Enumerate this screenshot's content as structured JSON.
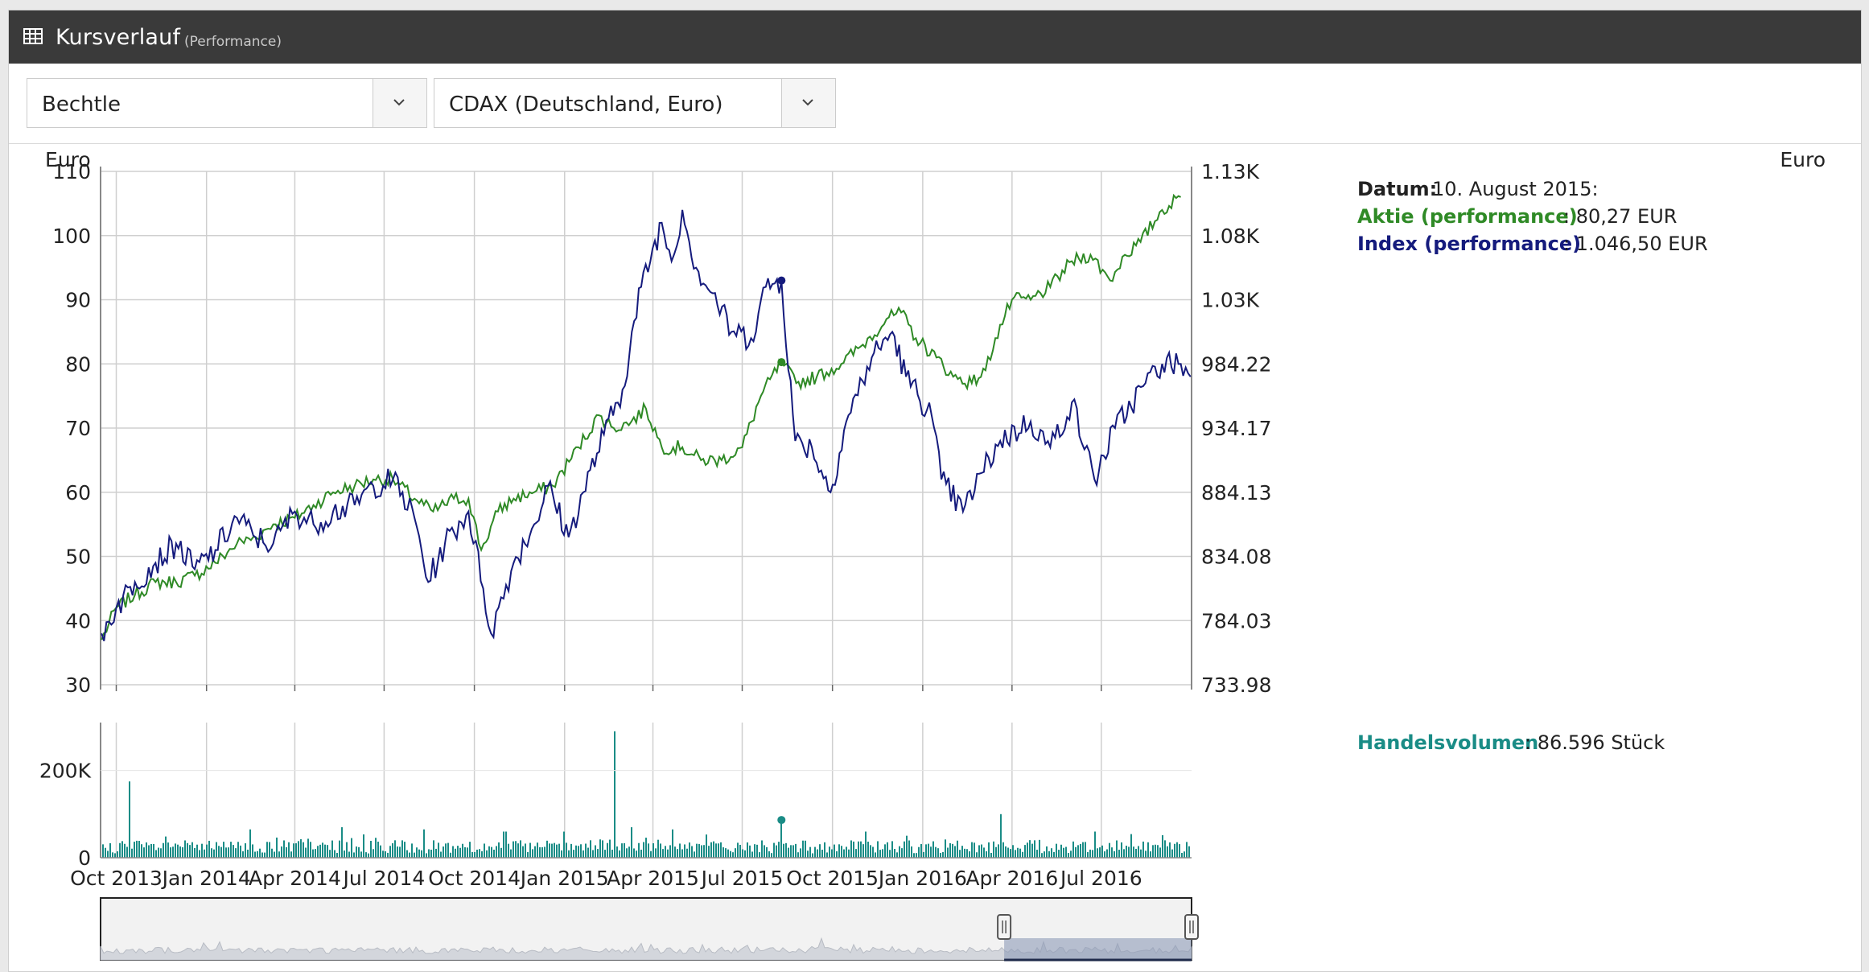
{
  "window": {
    "title": "Kursverlauf",
    "subtitle": "(Performance)",
    "icon": "table-icon"
  },
  "selectors": [
    {
      "value": "Bechtle",
      "icon": "chevron-down-icon"
    },
    {
      "value": "CDAX (Deutschland, Euro)",
      "icon": "chevron-down-icon"
    }
  ],
  "colors": {
    "stock": "#2f8a26",
    "index": "#151b7d",
    "volume": "#1a8c86",
    "titlebar": "#3a3a3a"
  },
  "chart_data": {
    "type": "line",
    "y_left_label": "Euro",
    "y_right_label": "Euro",
    "y_left_range": [
      30,
      110
    ],
    "y_left_ticks": [
      "110",
      "100",
      "90",
      "80",
      "70",
      "60",
      "50",
      "40",
      "30"
    ],
    "y_right_ticks": [
      "1.13K",
      "1.08K",
      "1.03K",
      "984.22",
      "934.17",
      "884.13",
      "834.08",
      "784.03",
      "733.98"
    ],
    "x_range": [
      "2013-09-15",
      "2016-10-01"
    ],
    "x_ticks": [
      {
        "label": "Oct 2013",
        "date": "2013-10-01"
      },
      {
        "label": "Jan 2014",
        "date": "2014-01-01"
      },
      {
        "label": "Apr 2014",
        "date": "2014-04-01"
      },
      {
        "label": "Jul 2014",
        "date": "2014-07-01"
      },
      {
        "label": "Oct 2014",
        "date": "2014-10-01"
      },
      {
        "label": "Jan 2015",
        "date": "2015-01-01"
      },
      {
        "label": "Apr 2015",
        "date": "2015-04-01"
      },
      {
        "label": "Jul 2015",
        "date": "2015-07-01"
      },
      {
        "label": "Oct 2015",
        "date": "2015-10-01"
      },
      {
        "label": "Jan 2016",
        "date": "2016-01-01"
      },
      {
        "label": "Apr 2016",
        "date": "2016-04-01"
      },
      {
        "label": "Jul 2016",
        "date": "2016-07-01"
      }
    ],
    "series": [
      {
        "name": "Aktie (performance)",
        "data": [
          [
            "2013-09-16",
            37
          ],
          [
            "2013-10-01",
            42
          ],
          [
            "2013-10-20",
            44
          ],
          [
            "2013-11-10",
            46
          ],
          [
            "2013-12-01",
            46
          ],
          [
            "2013-12-20",
            47
          ],
          [
            "2014-01-10",
            49
          ],
          [
            "2014-02-01",
            52
          ],
          [
            "2014-02-20",
            53
          ],
          [
            "2014-03-10",
            55
          ],
          [
            "2014-04-01",
            56
          ],
          [
            "2014-04-20",
            58
          ],
          [
            "2014-05-10",
            60
          ],
          [
            "2014-06-01",
            61
          ],
          [
            "2014-06-20",
            62
          ],
          [
            "2014-07-10",
            62
          ],
          [
            "2014-08-01",
            59
          ],
          [
            "2014-08-20",
            57
          ],
          [
            "2014-09-10",
            59
          ],
          [
            "2014-09-25",
            59
          ],
          [
            "2014-10-08",
            51
          ],
          [
            "2014-10-25",
            57
          ],
          [
            "2014-11-10",
            59
          ],
          [
            "2014-12-01",
            60
          ],
          [
            "2014-12-20",
            61
          ],
          [
            "2015-01-15",
            67
          ],
          [
            "2015-02-05",
            72
          ],
          [
            "2015-02-20",
            70
          ],
          [
            "2015-03-10",
            71
          ],
          [
            "2015-03-25",
            73
          ],
          [
            "2015-04-10",
            67
          ],
          [
            "2015-05-01",
            67
          ],
          [
            "2015-05-20",
            65
          ],
          [
            "2015-06-10",
            65
          ],
          [
            "2015-07-01",
            67
          ],
          [
            "2015-07-20",
            75
          ],
          [
            "2015-08-10",
            80.27
          ],
          [
            "2015-08-25",
            77
          ],
          [
            "2015-09-15",
            78
          ],
          [
            "2015-10-10",
            80
          ],
          [
            "2015-11-01",
            83
          ],
          [
            "2015-11-25",
            87
          ],
          [
            "2015-12-10",
            88
          ],
          [
            "2015-12-25",
            84
          ],
          [
            "2016-01-15",
            81
          ],
          [
            "2016-02-01",
            78
          ],
          [
            "2016-02-20",
            77
          ],
          [
            "2016-03-05",
            79
          ],
          [
            "2016-03-15",
            84
          ],
          [
            "2016-04-01",
            90
          ],
          [
            "2016-04-20",
            90
          ],
          [
            "2016-05-10",
            92
          ],
          [
            "2016-06-01",
            96
          ],
          [
            "2016-06-20",
            97
          ],
          [
            "2016-07-10",
            93
          ],
          [
            "2016-07-25",
            97
          ],
          [
            "2016-08-10",
            99
          ],
          [
            "2016-09-01",
            104
          ],
          [
            "2016-09-20",
            106
          ]
        ]
      },
      {
        "name": "Index (performance)",
        "data": [
          [
            "2013-09-16",
            38
          ],
          [
            "2013-10-01",
            42
          ],
          [
            "2013-10-20",
            46
          ],
          [
            "2013-11-10",
            49
          ],
          [
            "2013-12-01",
            52
          ],
          [
            "2013-12-20",
            48
          ],
          [
            "2014-01-10",
            51
          ],
          [
            "2014-02-01",
            56
          ],
          [
            "2014-02-20",
            53
          ],
          [
            "2014-03-10",
            52
          ],
          [
            "2014-04-01",
            57
          ],
          [
            "2014-04-20",
            55
          ],
          [
            "2014-05-10",
            57
          ],
          [
            "2014-06-01",
            58
          ],
          [
            "2014-06-20",
            61
          ],
          [
            "2014-07-10",
            62
          ],
          [
            "2014-08-01",
            56
          ],
          [
            "2014-08-15",
            46
          ],
          [
            "2014-09-01",
            52
          ],
          [
            "2014-09-25",
            57
          ],
          [
            "2014-10-10",
            45
          ],
          [
            "2014-10-18",
            38
          ],
          [
            "2014-11-10",
            49
          ],
          [
            "2014-12-01",
            55
          ],
          [
            "2014-12-15",
            61
          ],
          [
            "2015-01-05",
            53
          ],
          [
            "2015-01-20",
            60
          ],
          [
            "2015-02-10",
            69
          ],
          [
            "2015-03-01",
            76
          ],
          [
            "2015-03-20",
            92
          ],
          [
            "2015-04-10",
            102
          ],
          [
            "2015-04-20",
            96
          ],
          [
            "2015-05-01",
            104
          ],
          [
            "2015-05-15",
            95
          ],
          [
            "2015-06-01",
            91
          ],
          [
            "2015-06-20",
            85
          ],
          [
            "2015-07-10",
            84
          ],
          [
            "2015-07-25",
            92
          ],
          [
            "2015-08-10",
            93
          ],
          [
            "2015-08-24",
            68
          ],
          [
            "2015-09-10",
            67
          ],
          [
            "2015-09-29",
            60
          ],
          [
            "2015-10-15",
            71
          ],
          [
            "2015-11-10",
            81
          ],
          [
            "2015-12-01",
            85
          ],
          [
            "2015-12-15",
            78
          ],
          [
            "2016-01-10",
            72
          ],
          [
            "2016-01-20",
            62
          ],
          [
            "2016-02-11",
            57
          ],
          [
            "2016-03-01",
            63
          ],
          [
            "2016-03-20",
            68
          ],
          [
            "2016-04-20",
            71
          ],
          [
            "2016-05-10",
            67
          ],
          [
            "2016-06-01",
            74
          ],
          [
            "2016-06-24",
            62
          ],
          [
            "2016-07-15",
            70
          ],
          [
            "2016-08-15",
            77
          ],
          [
            "2016-09-01",
            80
          ],
          [
            "2016-09-20",
            80
          ],
          [
            "2016-09-30",
            78
          ]
        ]
      }
    ],
    "tooltip": {
      "date_label": "Datum:",
      "date_value": "10. August 2015:",
      "stock_label": "Aktie (performance)",
      "stock_value": ": 80,27 EUR",
      "index_label": "Index (performance)",
      "index_value": ": 1.046,50 EUR",
      "date": "2015-08-10"
    },
    "volume": {
      "y_ticks": [
        "200K",
        "0"
      ],
      "range": [
        0,
        310000
      ],
      "label": "Handelsvolumen",
      "value": ": 86.596 Stück",
      "peaks": [
        [
          "2013-10-15",
          175000
        ],
        [
          "2014-02-15",
          65000
        ],
        [
          "2014-05-20",
          70000
        ],
        [
          "2014-08-10",
          65000
        ],
        [
          "2014-11-01",
          60000
        ],
        [
          "2015-02-22",
          290000
        ],
        [
          "2015-03-10",
          70000
        ],
        [
          "2015-04-20",
          65000
        ],
        [
          "2015-08-10",
          86596
        ],
        [
          "2015-11-05",
          60000
        ],
        [
          "2016-03-20",
          100000
        ],
        [
          "2016-06-24",
          60000
        ]
      ]
    }
  }
}
